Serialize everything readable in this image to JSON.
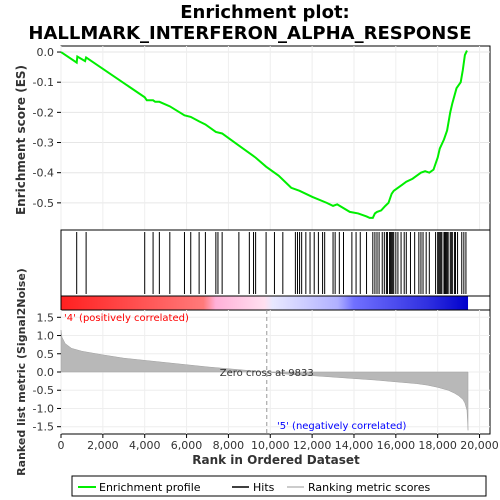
{
  "chart_data": {
    "type": "line",
    "title_line1": "Enrichment plot:",
    "title_line2": "HALLMARK_INTERFERON_ALPHA_RESPONSE",
    "top_panel": {
      "ylabel": "Enrichment score (ES)",
      "ylim": [
        -0.59,
        0.02
      ],
      "yticks": [
        0.0,
        -0.1,
        -0.2,
        -0.3,
        -0.4,
        -0.5
      ],
      "ytick_labels": [
        "0.0",
        "-0.1",
        "-0.2",
        "-0.3",
        "-0.4",
        "-0.5"
      ],
      "series": [
        {
          "name": "Enrichment profile",
          "color": "#00ee00",
          "x": [
            0,
            750,
            780,
            1150,
            1200,
            4000,
            4100,
            4400,
            4500,
            4700,
            5200,
            5900,
            6200,
            6600,
            6900,
            7400,
            7700,
            8500,
            9000,
            9300,
            9800,
            10400,
            11000,
            11400,
            12000,
            12700,
            13000,
            13200,
            13800,
            14200,
            14600,
            14750,
            14900,
            15000,
            15100,
            15300,
            15500,
            15650,
            15700,
            15800,
            15900,
            16100,
            16300,
            16500,
            16800,
            17000,
            17200,
            17400,
            17600,
            17800,
            18000,
            18100,
            18300,
            18450,
            18600,
            18700,
            18900,
            19000,
            19100,
            19200,
            19300,
            19400
          ],
          "y": [
            0.0,
            -0.035,
            -0.015,
            -0.03,
            -0.018,
            -0.15,
            -0.16,
            -0.16,
            -0.165,
            -0.165,
            -0.18,
            -0.21,
            -0.215,
            -0.23,
            -0.24,
            -0.265,
            -0.27,
            -0.31,
            -0.335,
            -0.35,
            -0.38,
            -0.41,
            -0.45,
            -0.46,
            -0.48,
            -0.5,
            -0.51,
            -0.505,
            -0.53,
            -0.535,
            -0.545,
            -0.55,
            -0.55,
            -0.535,
            -0.53,
            -0.525,
            -0.51,
            -0.5,
            -0.49,
            -0.47,
            -0.46,
            -0.45,
            -0.44,
            -0.43,
            -0.42,
            -0.41,
            -0.4,
            -0.395,
            -0.4,
            -0.39,
            -0.35,
            -0.32,
            -0.29,
            -0.26,
            -0.2,
            -0.17,
            -0.12,
            -0.11,
            -0.1,
            -0.06,
            -0.01,
            0.005
          ]
        }
      ]
    },
    "hits": [
      750,
      1200,
      4000,
      4400,
      4700,
      5200,
      5900,
      6200,
      6600,
      6900,
      7400,
      7500,
      7700,
      8500,
      9000,
      9200,
      9300,
      9800,
      10200,
      10600,
      11200,
      11300,
      11400,
      11500,
      11700,
      11900,
      12100,
      12300,
      12500,
      12600,
      13000,
      13100,
      13300,
      13500,
      13900,
      14100,
      14300,
      14600,
      14900,
      15000,
      15100,
      15200,
      15350,
      15450,
      15550,
      15600,
      15700,
      15750,
      15800,
      15850,
      15900,
      16000,
      16100,
      16250,
      16400,
      16500,
      16700,
      16900,
      17100,
      17200,
      17300,
      17450,
      17600,
      17900,
      18000,
      18050,
      18100,
      18150,
      18200,
      18300,
      18350,
      18400,
      18450,
      18500,
      18600,
      18650,
      18700,
      18800,
      18850,
      18950,
      19150,
      19250,
      19350
    ],
    "heatmap_bar": {
      "colors_from": "#ff0000",
      "colors_mid": "#ffffff",
      "colors_to": "#0000ff"
    },
    "bottom_panel": {
      "ylabel": "Ranked list metric (Signal2Noise)",
      "xlabel": "Rank in Ordered Dataset",
      "ylim": [
        -1.7,
        1.7
      ],
      "yticks": [
        1.5,
        1.0,
        0.5,
        0.0,
        -0.5,
        -1.0,
        -1.5
      ],
      "ytick_labels": [
        "1.5",
        "1.0",
        "0.5",
        "0.0",
        "-0.5",
        "-1.0",
        "-1.5"
      ],
      "xlim": [
        0,
        20500
      ],
      "xticks": [
        0,
        2000,
        4000,
        6000,
        8000,
        10000,
        12000,
        14000,
        16000,
        18000,
        20000
      ],
      "xtick_labels": [
        "0",
        "2,000",
        "4,000",
        "6,000",
        "8,000",
        "10,000",
        "12,000",
        "14,000",
        "16,000",
        "18,000",
        "20,000"
      ],
      "metric_x": [
        0,
        50,
        200,
        500,
        1000,
        2000,
        3000,
        4000,
        5000,
        6000,
        7000,
        8000,
        9000,
        9833,
        10500,
        11000,
        12000,
        13000,
        14000,
        15000,
        16000,
        17000,
        17500,
        18000,
        18500,
        18800,
        19000,
        19200,
        19300,
        19400,
        19450
      ],
      "metric_y": [
        1.15,
        0.95,
        0.78,
        0.65,
        0.57,
        0.47,
        0.38,
        0.32,
        0.26,
        0.2,
        0.14,
        0.09,
        0.04,
        0.0,
        -0.04,
        -0.07,
        -0.1,
        -0.14,
        -0.18,
        -0.22,
        -0.27,
        -0.32,
        -0.36,
        -0.42,
        -0.5,
        -0.58,
        -0.65,
        -0.75,
        -0.85,
        -1.05,
        -1.6
      ],
      "zero_cross_label": "Zero cross at 9833",
      "zero_cross_x": 9833,
      "pos_label": "'4' (positively correlated)",
      "neg_label": "'5' (negatively correlated)",
      "pos_color": "#ff0000",
      "neg_color": "#0000ff"
    },
    "legend": [
      "Enrichment profile",
      "Hits",
      "Ranking metric scores"
    ],
    "xmax_rank": 19450
  }
}
